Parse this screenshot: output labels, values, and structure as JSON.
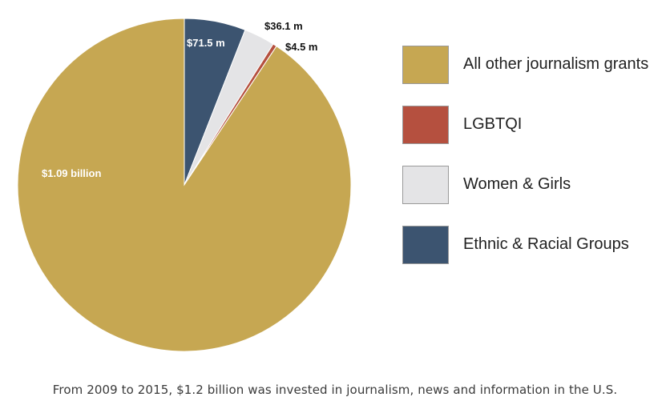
{
  "chart_data": {
    "type": "pie",
    "title": "",
    "series": [
      {
        "name": "All other journalism grants",
        "label": "$1.09 billion",
        "value": 1090,
        "color": "#C6A752"
      },
      {
        "name": "Ethnic & Racial Groups",
        "label": "$71.5 m",
        "value": 71.5,
        "color": "#3C5470"
      },
      {
        "name": "Women & Girls",
        "label": "$36.1 m",
        "value": 36.1,
        "color": "#E4E4E6"
      },
      {
        "name": "LGBTQI",
        "label": "$4.5 m",
        "value": 4.5,
        "color": "#B5503F"
      }
    ],
    "legend_order": [
      "All other journalism grants",
      "LGBTQI",
      "Women & Girls",
      "Ethnic & Racial Groups"
    ],
    "legend_position": "right"
  },
  "footnote": "From 2009 to 2015, $1.2 billion was invested in journalism, news and information in the U.S."
}
